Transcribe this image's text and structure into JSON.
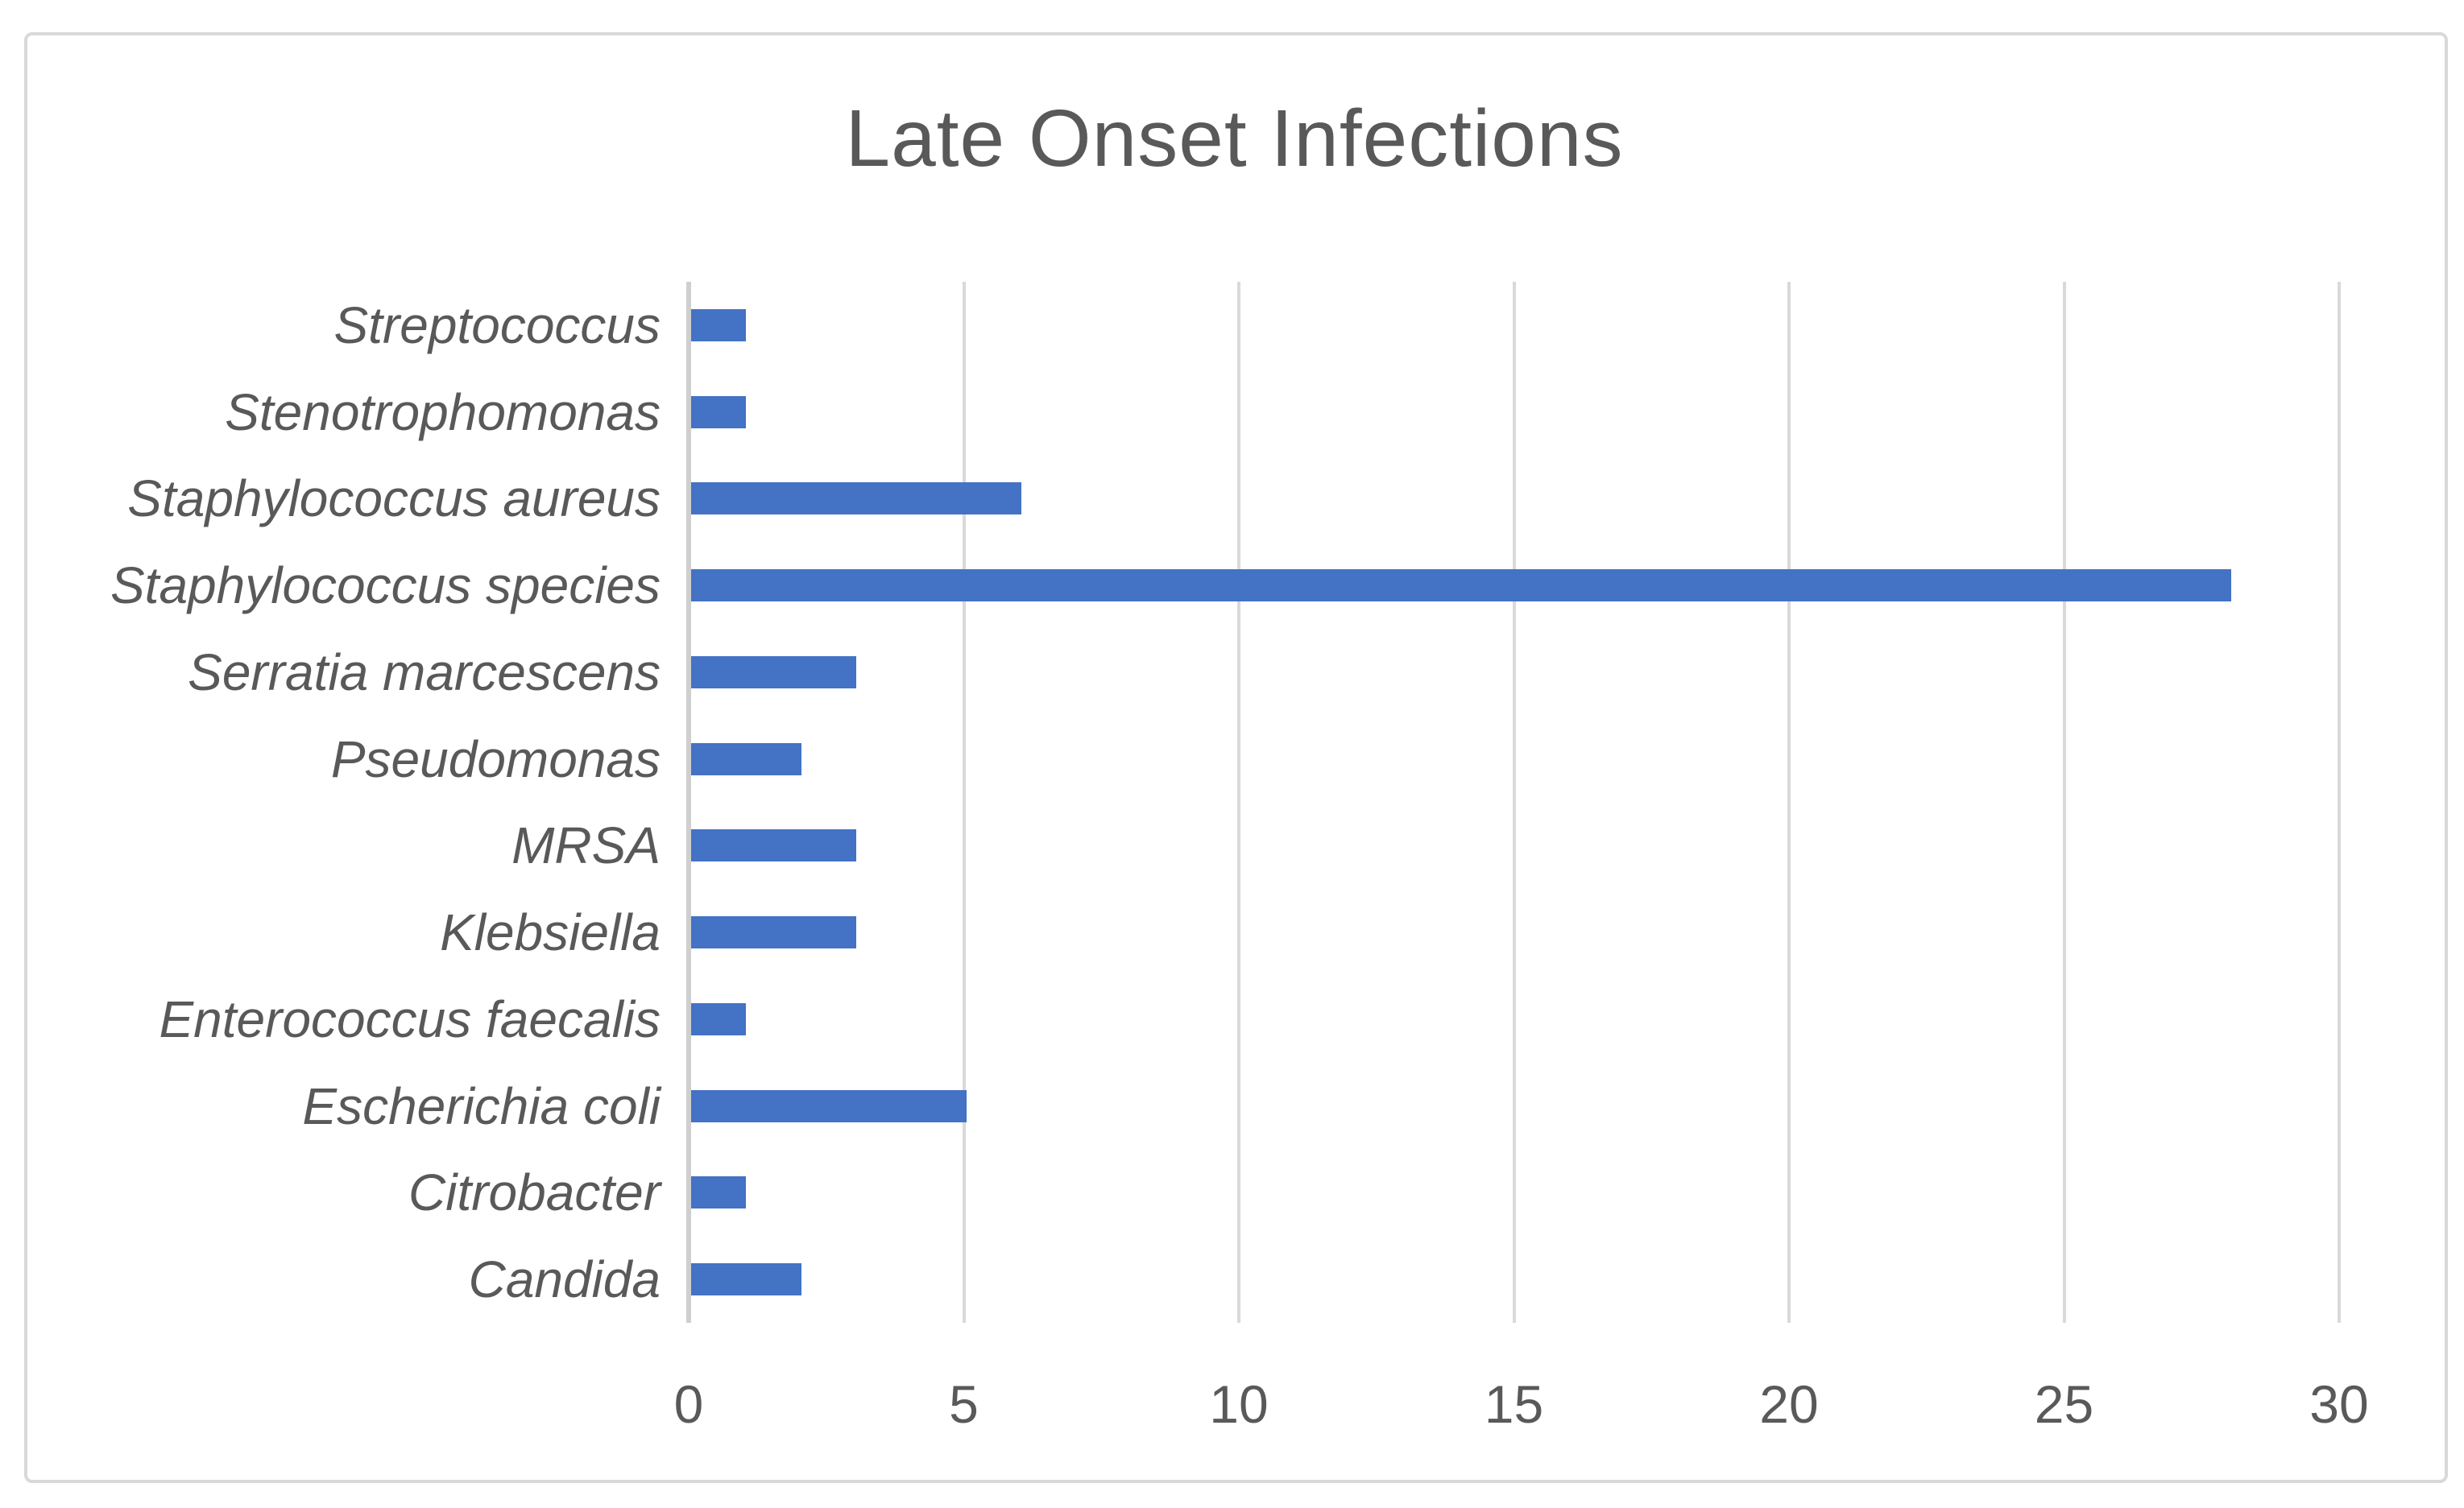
{
  "chart_data": {
    "type": "bar",
    "orientation": "horizontal",
    "title": "Late Onset Infections",
    "categories": [
      "Streptococcus",
      "Stenotrophomonas",
      "Staphylococcus aureus",
      "Staphylococcus species",
      "Serratia marcescens",
      "Pseudomonas",
      "MRSA",
      "Klebsiella",
      "Enterococcus faecalis",
      "Escherichia coli",
      "Citrobacter",
      "Candida"
    ],
    "values": [
      1,
      1,
      6,
      28,
      3,
      2,
      3,
      3,
      1,
      5,
      1,
      2
    ],
    "x_ticks": [
      0,
      5,
      10,
      15,
      20,
      25,
      30
    ],
    "xlim": [
      0,
      30
    ],
    "xlabel": "",
    "ylabel": "",
    "grid": true,
    "legend": false,
    "colors": {
      "bar": "#4472c4",
      "gridline": "#d9d9d9",
      "axis_line": "#cfcfcf",
      "text": "#595959",
      "frame_border": "#d9d9d9",
      "background": "#ffffff"
    }
  }
}
